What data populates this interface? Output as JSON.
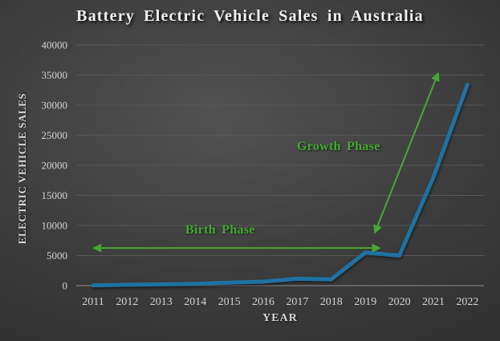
{
  "page": {
    "title": "Battery Electric Vehicle Sales in Australia"
  },
  "axis_titles": {
    "y": "ELECTRIC VEHICLE SALES",
    "x": "YEAR"
  },
  "colors": {
    "line": "#1f72a3",
    "annotation_green": "#46a833",
    "gridline": "#575757",
    "zero_line": "#8a8a8a",
    "tick_text": "#d3d3d3",
    "title_text": "#f1f1f1"
  },
  "chart_data": {
    "type": "line",
    "title": "Battery Electric Vehicle Sales in Australia",
    "xlabel": "YEAR",
    "ylabel": "ELECTRIC VEHICLE SALES",
    "categories": [
      2011,
      2012,
      2013,
      2014,
      2015,
      2016,
      2017,
      2018,
      2019,
      2020,
      2021,
      2022
    ],
    "values": [
      50,
      150,
      220,
      310,
      500,
      670,
      1150,
      1050,
      5500,
      5000,
      18000,
      33400
    ],
    "ylim": [
      0,
      40000
    ],
    "ytick_step": 5000,
    "grid": true,
    "legend": false,
    "annotations": [
      {
        "label": "Birth Phase",
        "type": "double-arrow",
        "from": {
          "year": 2011.02,
          "value": 6250
        },
        "to": {
          "year": 2019.42,
          "value": 6250
        }
      },
      {
        "label": "Growth Phase",
        "type": "double-arrow",
        "from": {
          "year": 2019.28,
          "value": 8800
        },
        "to": {
          "year": 2021.14,
          "value": 35300
        }
      }
    ]
  }
}
